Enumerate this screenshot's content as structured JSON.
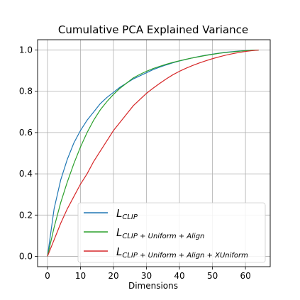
{
  "chart_data": {
    "type": "line",
    "title": "Cumulative PCA Explained Variance",
    "xlabel": "Dimensions",
    "ylabel": "",
    "xlim": [
      -3,
      67.5
    ],
    "ylim": [
      -0.05,
      1.05
    ],
    "xticks": [
      0,
      10,
      20,
      30,
      40,
      50,
      60
    ],
    "yticks": [
      0.0,
      0.2,
      0.4,
      0.6,
      0.8,
      1.0
    ],
    "xtick_labels": [
      "0",
      "10",
      "20",
      "30",
      "40",
      "50",
      "60"
    ],
    "ytick_labels": [
      "0.0",
      "0.2",
      "0.4",
      "0.6",
      "0.8",
      "1.0"
    ],
    "grid": true,
    "legend_position": "lower-right",
    "x": [
      0,
      2,
      4,
      6,
      8,
      10,
      12,
      14,
      16,
      18,
      20,
      22,
      24,
      26,
      28,
      30,
      32,
      34,
      36,
      38,
      40,
      42,
      44,
      46,
      48,
      50,
      52,
      54,
      56,
      58,
      60,
      62,
      64
    ],
    "series": [
      {
        "name_main": "L",
        "name_sub": "CLIP",
        "color": "#1f77b4",
        "values": [
          0.0,
          0.23,
          0.37,
          0.47,
          0.55,
          0.61,
          0.66,
          0.7,
          0.74,
          0.77,
          0.795,
          0.82,
          0.84,
          0.86,
          0.875,
          0.89,
          0.905,
          0.917,
          0.928,
          0.938,
          0.947,
          0.955,
          0.962,
          0.969,
          0.975,
          0.98,
          0.985,
          0.989,
          0.992,
          0.995,
          0.997,
          0.999,
          1.0
        ]
      },
      {
        "name_main": "L",
        "name_sub": "CLIP + Uniform + Align",
        "color": "#2ca02c",
        "values": [
          0.0,
          0.14,
          0.26,
          0.36,
          0.45,
          0.53,
          0.6,
          0.66,
          0.71,
          0.75,
          0.785,
          0.815,
          0.84,
          0.865,
          0.882,
          0.897,
          0.91,
          0.921,
          0.931,
          0.94,
          0.948,
          0.955,
          0.962,
          0.968,
          0.974,
          0.979,
          0.984,
          0.988,
          0.991,
          0.994,
          0.997,
          0.999,
          1.0
        ]
      },
      {
        "name_main": "L",
        "name_sub": "CLIP + Uniform + Align + XUniform",
        "color": "#d62728",
        "values": [
          0.0,
          0.08,
          0.16,
          0.23,
          0.29,
          0.35,
          0.4,
          0.46,
          0.51,
          0.56,
          0.61,
          0.65,
          0.69,
          0.73,
          0.76,
          0.79,
          0.815,
          0.838,
          0.86,
          0.88,
          0.897,
          0.912,
          0.925,
          0.937,
          0.948,
          0.958,
          0.967,
          0.975,
          0.982,
          0.988,
          0.993,
          0.997,
          1.0
        ]
      }
    ]
  }
}
